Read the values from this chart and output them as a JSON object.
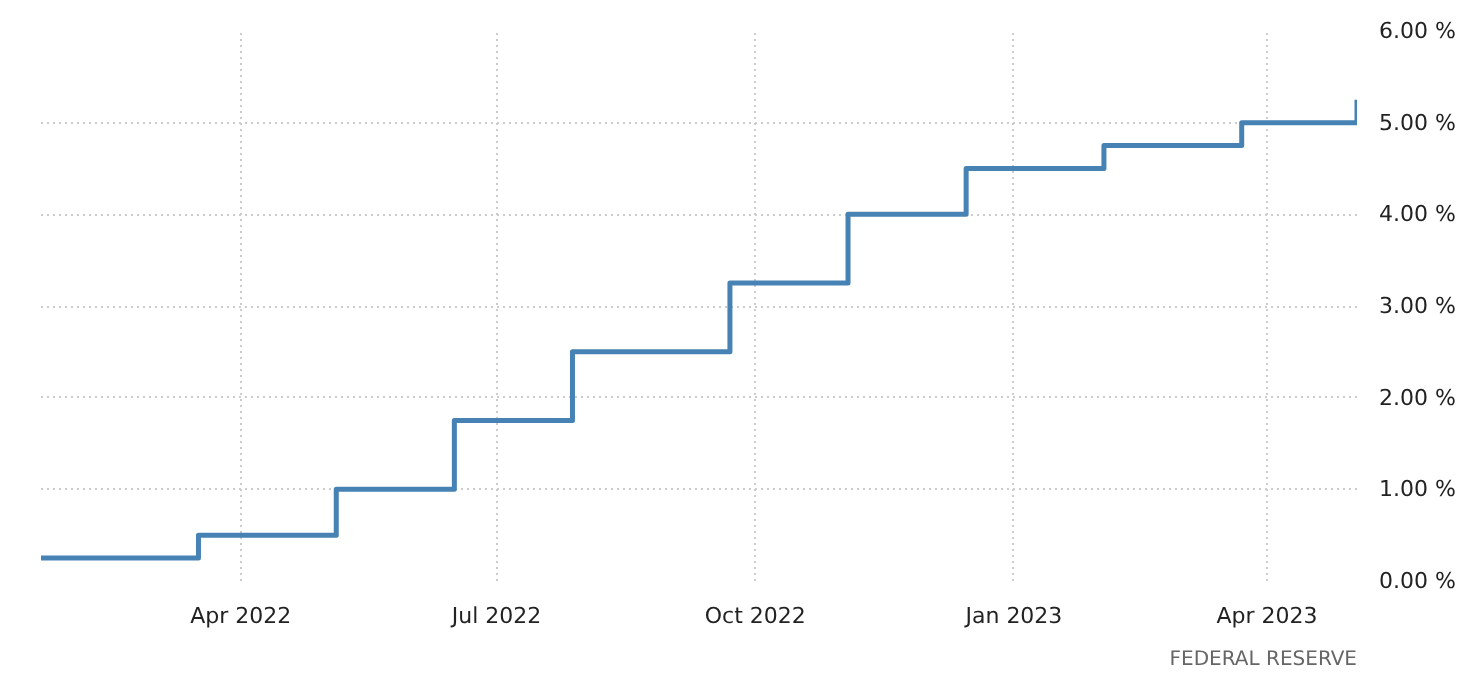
{
  "chart_data": {
    "type": "step",
    "x": [
      "2022-01-20",
      "2022-03-17",
      "2022-05-05",
      "2022-06-16",
      "2022-07-28",
      "2022-09-22",
      "2022-11-03",
      "2022-12-15",
      "2023-02-02",
      "2023-03-23",
      "2023-05-03"
    ],
    "series": [
      {
        "color": "#4682b4",
        "values": [
          0.25,
          0.5,
          1.0,
          1.75,
          2.5,
          3.25,
          4.0,
          4.5,
          4.75,
          5.0,
          5.25
        ]
      }
    ],
    "xlim": [
      "2022-01-20",
      "2023-05-03"
    ],
    "xticks": [
      {
        "value": "2022-04-01",
        "label": "Apr 2022"
      },
      {
        "value": "2022-07-01",
        "label": "Jul 2022"
      },
      {
        "value": "2022-10-01",
        "label": "Oct 2022"
      },
      {
        "value": "2023-01-01",
        "label": "Jan 2023"
      },
      {
        "value": "2023-04-01",
        "label": "Apr 2023"
      }
    ],
    "ylim": [
      0,
      6
    ],
    "yticks": [
      {
        "value": 0,
        "label": "0.00 %"
      },
      {
        "value": 1,
        "label": "1.00 %"
      },
      {
        "value": 2,
        "label": "2.00 %"
      },
      {
        "value": 3,
        "label": "3.00 %"
      },
      {
        "value": 4,
        "label": "4.00 %"
      },
      {
        "value": 5,
        "label": "5.00 %"
      },
      {
        "value": 6,
        "label": "6.00 %"
      }
    ],
    "grid": true,
    "line_style": "solid",
    "annotations": [
      "FEDERAL RESERVE"
    ]
  }
}
